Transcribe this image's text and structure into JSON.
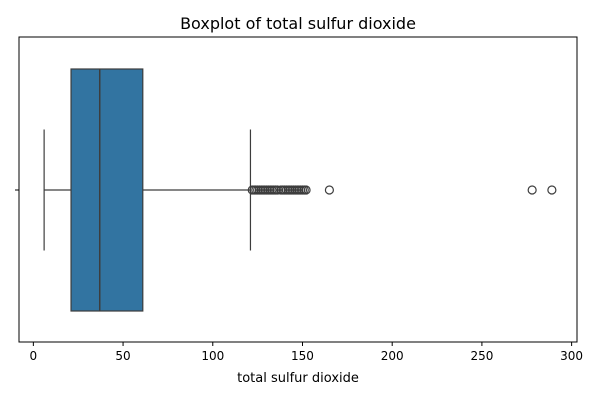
{
  "chart_data": {
    "type": "box",
    "title": "Boxplot of total sulfur dioxide",
    "xlabel": "total sulfur dioxide",
    "ylabel": "",
    "orientation": "horizontal",
    "xlim": [
      -8,
      303
    ],
    "xticks": [
      0,
      50,
      100,
      150,
      200,
      250,
      300
    ],
    "grid": false,
    "box_color": "#3274a1",
    "line_color": "#3d3d3d",
    "box": {
      "whisker_low": 6,
      "q1": 21,
      "median": 37,
      "q3": 61,
      "whisker_high": 121
    },
    "outliers": [
      122,
      123,
      124,
      125,
      126,
      127,
      128,
      129,
      130,
      131,
      132,
      133,
      134,
      135,
      136,
      138,
      139,
      140,
      141,
      142,
      143,
      144,
      145,
      146,
      147,
      148,
      149,
      150,
      151,
      152,
      165,
      278,
      289
    ]
  }
}
